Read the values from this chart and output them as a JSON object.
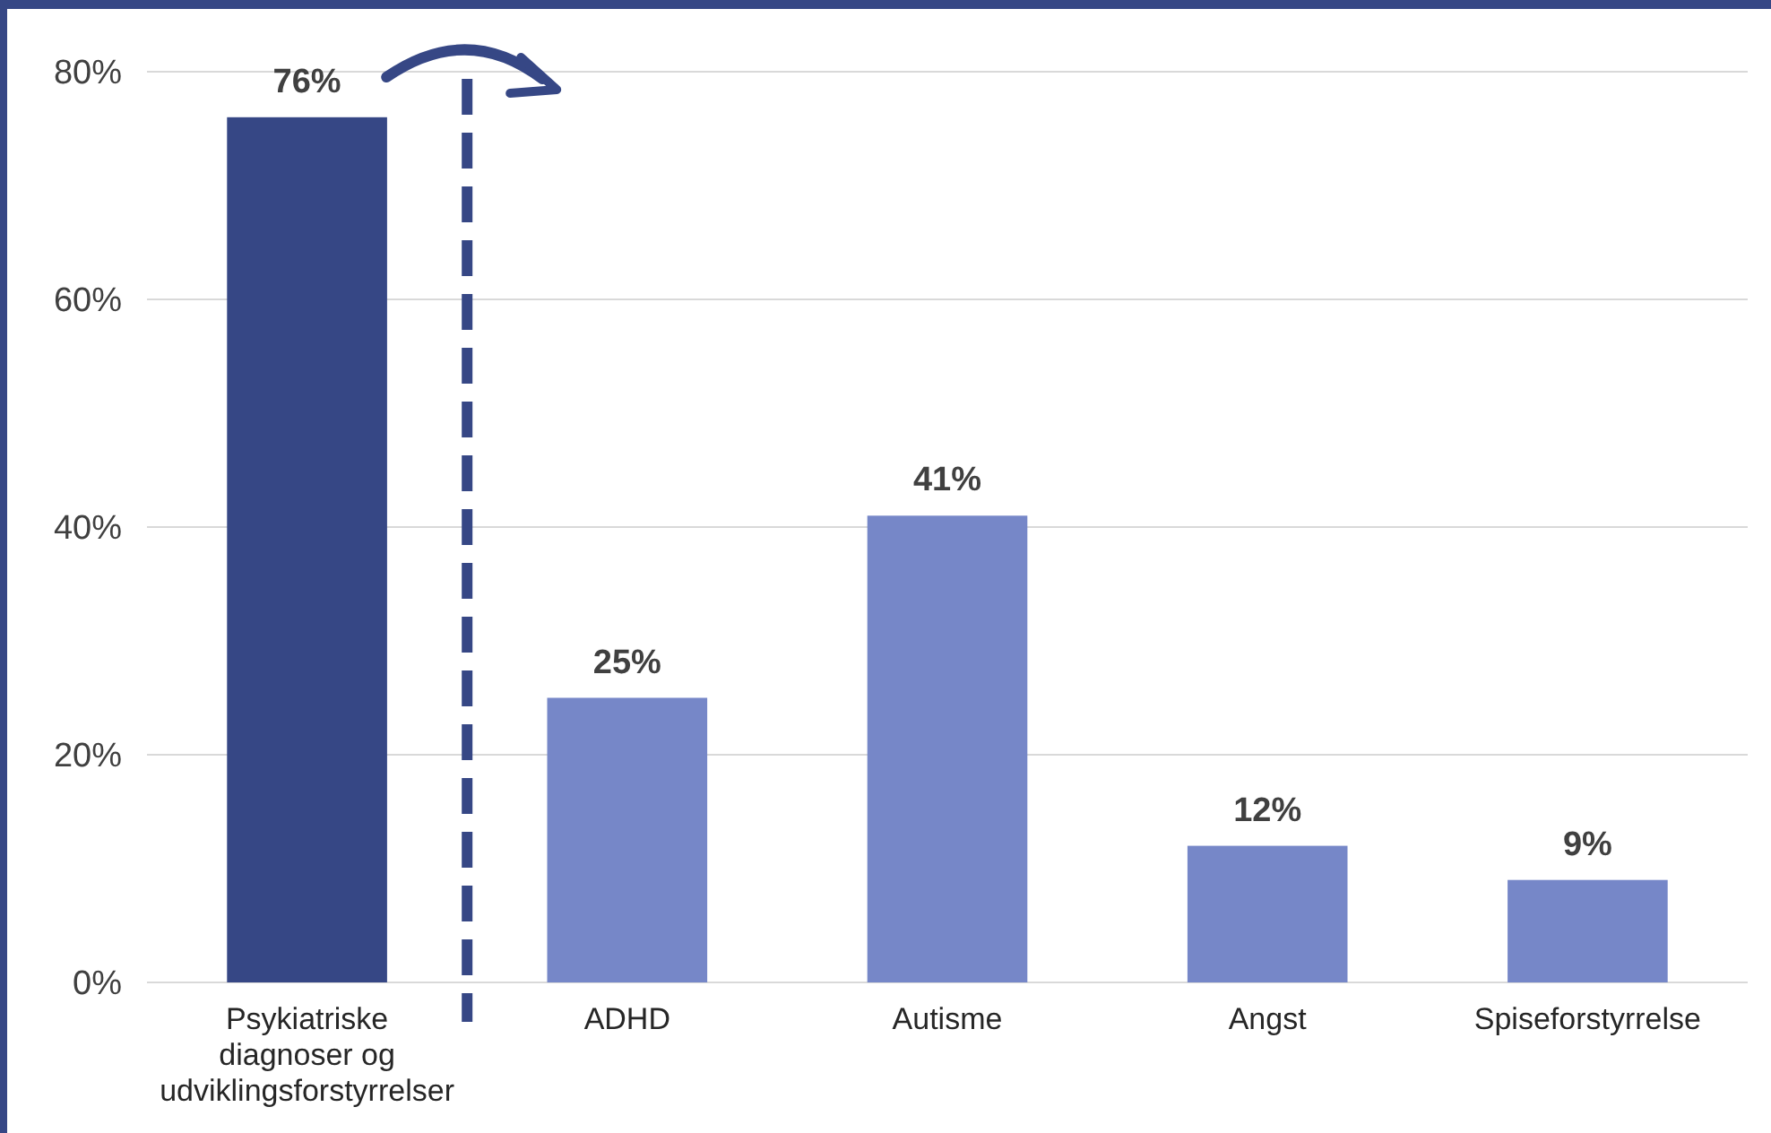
{
  "chart_data": {
    "type": "bar",
    "categories": [
      "Psykiatriske diagnoser og udviklingsforstyrrelser",
      "ADHD",
      "Autisme",
      "Angst",
      "Spiseforstyrrelse"
    ],
    "values": [
      76,
      25,
      41,
      12,
      9
    ],
    "colors": [
      "#364785",
      "#7687c8",
      "#7687c8",
      "#7687c8",
      "#7687c8"
    ],
    "value_labels": [
      "76%",
      "25%",
      "41%",
      "12%",
      "9%"
    ],
    "ylim": [
      0,
      80
    ],
    "yticks": [
      {
        "value": 0,
        "label": "0%"
      },
      {
        "value": 20,
        "label": "20%"
      },
      {
        "value": 40,
        "label": "40%"
      },
      {
        "value": 60,
        "label": "60%"
      },
      {
        "value": 80,
        "label": "80%"
      }
    ],
    "grid": "y"
  }
}
